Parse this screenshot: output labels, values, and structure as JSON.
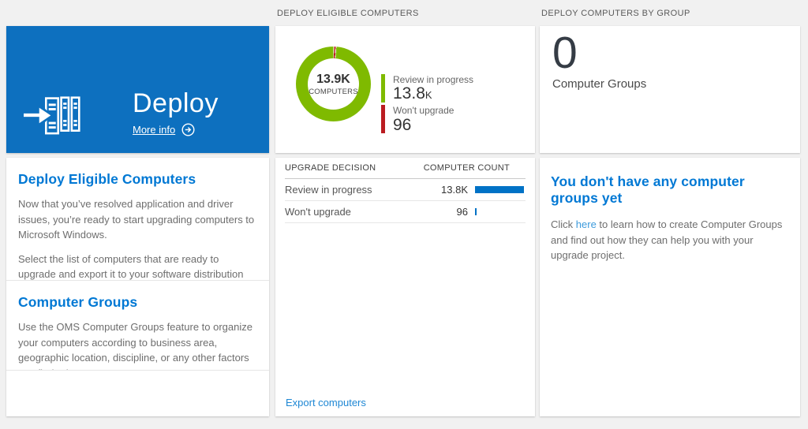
{
  "chart_data": {
    "type": "pie",
    "title": "Deploy eligible computers",
    "labels": [
      "Review in progress",
      "Won't upgrade"
    ],
    "values": [
      13800,
      96
    ],
    "colors": [
      "#7fba00",
      "#ba1c21"
    ],
    "center_value": "13.9K",
    "center_label": "COMPUTERS",
    "legend_position": "right"
  },
  "headers": {
    "middle": "DEPLOY ELIGIBLE COMPUTERS",
    "right": "DEPLOY COMPUTERS BY GROUP"
  },
  "hero": {
    "title": "Deploy",
    "more_info_label": "More info"
  },
  "left_card": {
    "sections": [
      {
        "heading": "Deploy Eligible Computers",
        "para1": "Now that you’ve resolved application and driver issues, you’re ready to start upgrading computers to Microsoft Windows.",
        "para2": "Select the list of computers that are ready to upgrade and export it to your software distribution solution."
      },
      {
        "heading": "Computer Groups",
        "para1": "Use the OMS Computer Groups feature to organize your computers according to business area, geographic location, discipline, or any other factors you find relevant."
      }
    ]
  },
  "donut_tile": {
    "center_value": "13.9K",
    "center_label": "COMPUTERS",
    "legend": [
      {
        "label": "Review in progress",
        "value": "13.8",
        "suffix": "K"
      },
      {
        "label": "Won't upgrade",
        "value": "96",
        "suffix": ""
      }
    ]
  },
  "table": {
    "col_label": "UPGRADE DECISION",
    "col_count": "COMPUTER COUNT",
    "rows": [
      {
        "label": "Review in progress",
        "count": "13.8K"
      },
      {
        "label": "Won't upgrade",
        "count": "96"
      }
    ],
    "footer_link": "Export computers"
  },
  "groups_tile": {
    "value": "0",
    "label": "Computer Groups"
  },
  "groups_card": {
    "heading": "You don't have any computer groups yet",
    "text_before_link": "Click ",
    "link_text": "here",
    "text_after_link": " to learn how to create Computer Groups and find out how they can help you with your upgrade project."
  },
  "colors": {
    "tile_blue": "#0d70bf",
    "heading_blue": "#0078d4",
    "link_blue": "#1e87d4",
    "bar_blue": "#0072c6",
    "donut_green": "#7fba00",
    "donut_red": "#ba1c21",
    "page_background": "#f1f1f1"
  }
}
